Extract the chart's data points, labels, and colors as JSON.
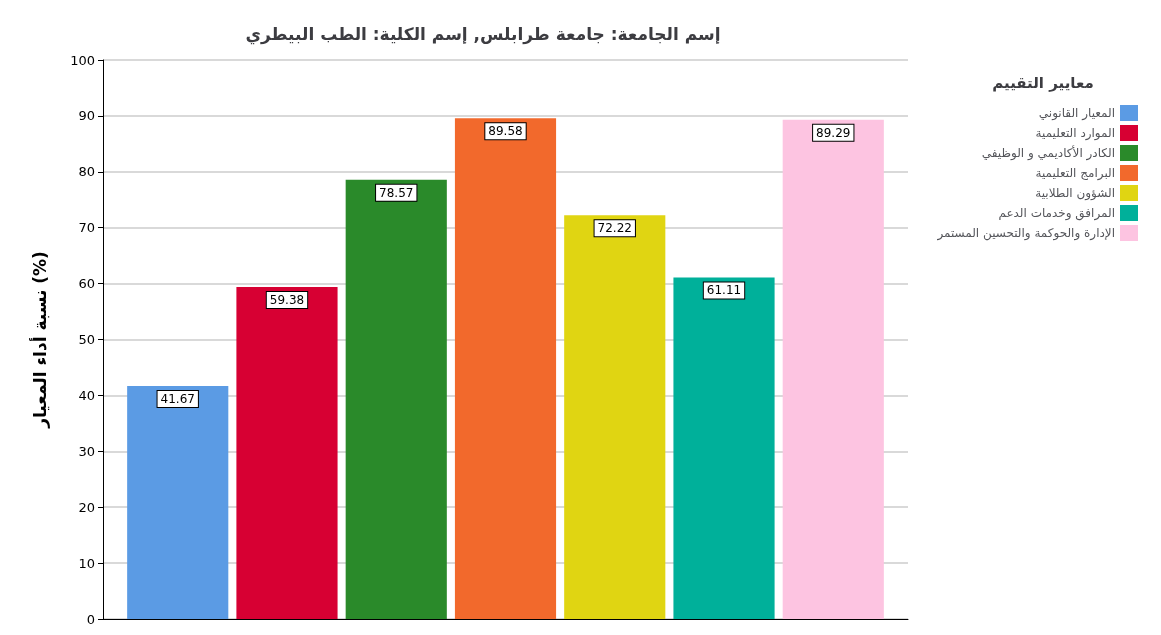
{
  "chart_data": {
    "type": "bar",
    "title": "إسم الجامعة: جامعة طرابلس, إسم الكلية: الطب البيطري",
    "ylabel": "نسبة أداء المعيار (%)",
    "legend_title": "معايير التقييم",
    "categories": [
      null
    ],
    "series": [
      {
        "name": "المعيار القانوني",
        "color": "#5b9be4",
        "values": [
          41.67
        ]
      },
      {
        "name": "الموارد التعليمية",
        "color": "#d70033",
        "values": [
          59.38
        ]
      },
      {
        "name": "الكادر الأكاديمي و الوظيفي",
        "color": "#2a8a2a",
        "values": [
          78.57
        ]
      },
      {
        "name": "البرامج التعليمية",
        "color": "#f2692c",
        "values": [
          89.58
        ]
      },
      {
        "name": "الشؤون الطلابية",
        "color": "#e0d512",
        "values": [
          72.22
        ]
      },
      {
        "name": "المرافق وخدمات الدعم",
        "color": "#00b09a",
        "values": [
          61.11
        ]
      },
      {
        "name": "الإدارة والحوكمة والتحسين المستمر",
        "color": "#fdc4e1",
        "values": [
          89.29
        ]
      }
    ],
    "ylim": [
      0,
      100
    ],
    "yticks": [
      0,
      10,
      20,
      30,
      40,
      50,
      60,
      70,
      80,
      90,
      100
    ],
    "grid": "y",
    "legend": "top right",
    "data_labels": true
  }
}
